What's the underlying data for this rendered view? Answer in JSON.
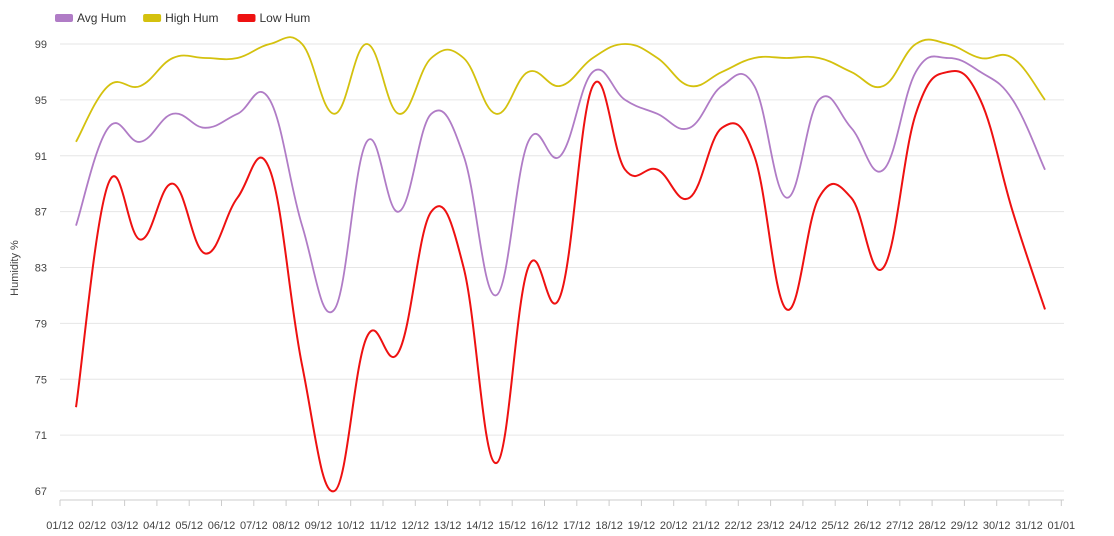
{
  "chart_data": {
    "type": "line",
    "title": "",
    "xlabel": "",
    "ylabel": "Humidity %",
    "ylim": [
      67,
      99
    ],
    "yticks": [
      67,
      71,
      75,
      79,
      83,
      87,
      91,
      95,
      99
    ],
    "grid": true,
    "legend_position": "top-left",
    "x_tick_labels": [
      "01/12",
      "02/12",
      "03/12",
      "04/12",
      "05/12",
      "06/12",
      "07/12",
      "08/12",
      "09/12",
      "10/12",
      "11/12",
      "12/12",
      "13/12",
      "14/12",
      "15/12",
      "16/12",
      "17/12",
      "18/12",
      "19/12",
      "20/12",
      "21/12",
      "22/12",
      "23/12",
      "24/12",
      "25/12",
      "26/12",
      "27/12",
      "28/12",
      "29/12",
      "30/12",
      "31/12",
      "01/01"
    ],
    "x": [
      "02/12",
      "03/12",
      "04/12",
      "05/12",
      "06/12",
      "07/12",
      "08/12",
      "09/12",
      "10/12",
      "11/12",
      "12/12",
      "13/12",
      "14/12",
      "15/12",
      "16/12",
      "17/12",
      "18/12",
      "19/12",
      "20/12",
      "21/12",
      "22/12",
      "23/12",
      "24/12",
      "25/12",
      "26/12",
      "27/12",
      "28/12",
      "29/12",
      "30/12",
      "31/12",
      "01/01"
    ],
    "series": [
      {
        "name": "Avg Hum",
        "color": "#b07cc6",
        "values": [
          86,
          93,
          92,
          94,
          93,
          94,
          95,
          86,
          80,
          92,
          87,
          94,
          91,
          81,
          92,
          91,
          97,
          95,
          94,
          93,
          96,
          96,
          88,
          95,
          93,
          90,
          97,
          98,
          97,
          95,
          90
        ]
      },
      {
        "name": "High Hum",
        "color": "#d4c10e",
        "values": [
          92,
          96,
          96,
          98,
          98,
          98,
          99,
          99,
          94,
          99,
          94,
          98,
          98,
          94,
          97,
          96,
          98,
          99,
          98,
          96,
          97,
          98,
          98,
          98,
          97,
          96,
          99,
          99,
          98,
          98,
          95
        ]
      },
      {
        "name": "Low Hum",
        "color": "#ee1111",
        "values": [
          73,
          89,
          85,
          89,
          84,
          88,
          90,
          76,
          67,
          78,
          77,
          87,
          83,
          69,
          83,
          81,
          96,
          90,
          90,
          88,
          93,
          91,
          80,
          88,
          88,
          83,
          94,
          97,
          95,
          87,
          80
        ]
      }
    ]
  }
}
